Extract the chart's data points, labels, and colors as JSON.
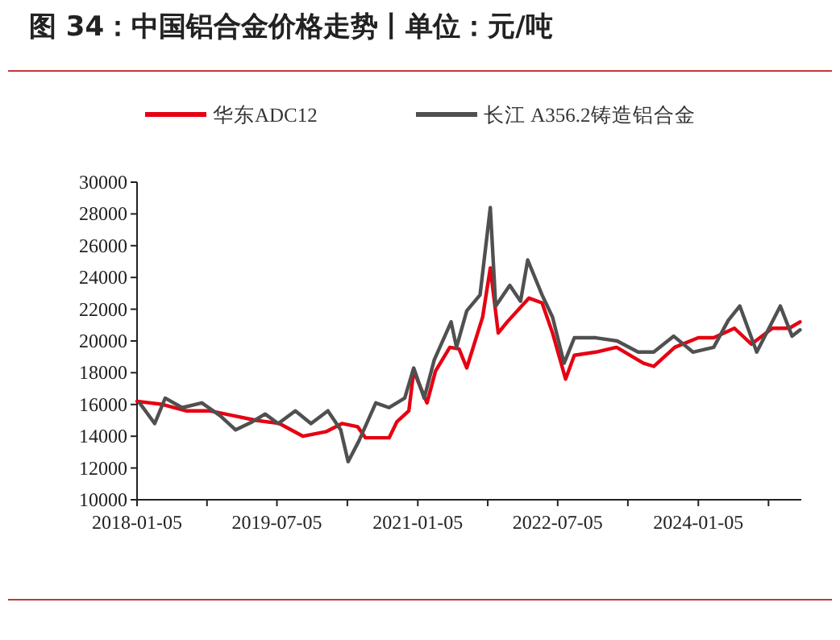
{
  "chart_data": {
    "type": "line",
    "title": "图 34：中国铝合金价格走势丨单位：元/吨",
    "xlim": [
      "2018-01-05",
      "2025-02-10"
    ],
    "xticks": [
      {
        "value": "2018-01-05",
        "label": "2018-01-05"
      },
      {
        "value": "2018-10-05",
        "label": null
      },
      {
        "value": "2019-07-05",
        "label": "2019-07-05"
      },
      {
        "value": "2020-04-05",
        "label": null
      },
      {
        "value": "2021-01-05",
        "label": "2021-01-05"
      },
      {
        "value": "2021-10-05",
        "label": null
      },
      {
        "value": "2022-07-05",
        "label": "2022-07-05"
      },
      {
        "value": "2023-04-05",
        "label": null
      },
      {
        "value": "2024-01-05",
        "label": "2024-01-05"
      },
      {
        "value": "2024-10-05",
        "label": null
      }
    ],
    "ylim": [
      10000,
      30000
    ],
    "yticks": [
      10000,
      12000,
      14000,
      16000,
      18000,
      20000,
      22000,
      24000,
      26000,
      28000,
      30000
    ],
    "grid": false,
    "legend": "top",
    "marker": "none",
    "line_style": "solid",
    "series": [
      {
        "name": "华东ADC12",
        "color": "#e60012",
        "x": [
          "2018-01-05",
          "2018-04-15",
          "2018-07-15",
          "2018-10-15",
          "2019-01-15",
          "2019-04-15",
          "2019-07-15",
          "2019-10-15",
          "2020-01-15",
          "2020-03-15",
          "2020-05-15",
          "2020-06-15",
          "2020-09-15",
          "2020-10-15",
          "2020-12-01",
          "2020-12-20",
          "2021-02-10",
          "2021-03-15",
          "2021-05-10",
          "2021-06-15",
          "2021-07-15",
          "2021-09-15",
          "2021-10-15",
          "2021-11-15",
          "2021-12-20",
          "2022-03-15",
          "2022-05-05",
          "2022-06-15",
          "2022-08-05",
          "2022-09-08",
          "2022-12-01",
          "2023-02-20",
          "2023-06-05",
          "2023-07-15",
          "2023-10-05",
          "2024-01-05",
          "2024-03-05",
          "2024-05-25",
          "2024-07-30",
          "2024-10-20",
          "2024-12-25",
          "2025-02-05"
        ],
        "values": [
          16200,
          16000,
          15600,
          15600,
          15300,
          15000,
          14800,
          14000,
          14300,
          14800,
          14600,
          13900,
          13900,
          14900,
          15600,
          18100,
          16100,
          18100,
          19600,
          19500,
          18300,
          21500,
          24600,
          20500,
          21200,
          22700,
          22400,
          20500,
          17600,
          19100,
          19300,
          19600,
          18600,
          18400,
          19600,
          20200,
          20200,
          20800,
          19800,
          20800,
          20800,
          21200
        ]
      },
      {
        "name": "长江 A356.2铸造铝合金",
        "color": "#505050",
        "x": [
          "2018-01-15",
          "2018-03-15",
          "2018-04-25",
          "2018-06-30",
          "2018-09-15",
          "2018-11-25",
          "2019-01-25",
          "2019-03-30",
          "2019-05-20",
          "2019-07-10",
          "2019-09-15",
          "2019-11-15",
          "2020-01-20",
          "2020-03-10",
          "2020-04-08",
          "2020-05-20",
          "2020-07-25",
          "2020-09-15",
          "2020-11-15",
          "2020-12-20",
          "2021-01-30",
          "2021-03-10",
          "2021-05-15",
          "2021-06-05",
          "2021-07-15",
          "2021-09-05",
          "2021-10-15",
          "2021-11-05",
          "2021-12-30",
          "2022-02-10",
          "2022-03-10",
          "2022-05-05",
          "2022-06-15",
          "2022-07-30",
          "2022-09-08",
          "2022-12-01",
          "2023-02-22",
          "2023-05-15",
          "2023-07-15",
          "2023-10-01",
          "2023-12-15",
          "2024-03-05",
          "2024-05-01",
          "2024-06-15",
          "2024-08-20",
          "2024-11-20",
          "2025-01-05",
          "2025-02-05"
        ],
        "values": [
          16100,
          14800,
          16400,
          15800,
          16100,
          15300,
          14400,
          14900,
          15400,
          14800,
          15600,
          14800,
          15600,
          14400,
          12400,
          13700,
          16100,
          15800,
          16400,
          18300,
          16400,
          18800,
          21200,
          19600,
          21900,
          22900,
          28400,
          22200,
          23500,
          22500,
          25100,
          22900,
          21500,
          18600,
          20200,
          20200,
          20000,
          19300,
          19300,
          20300,
          19300,
          19600,
          21300,
          22200,
          19300,
          22200,
          20300,
          20700
        ]
      }
    ]
  }
}
